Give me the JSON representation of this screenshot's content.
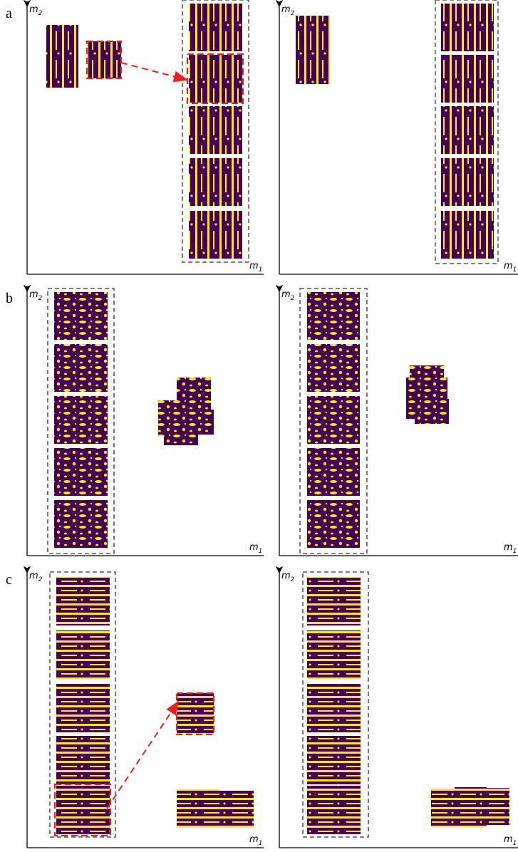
{
  "panel_labels": [
    "a",
    "b",
    "c"
  ],
  "axis_labels": {
    "x": {
      "symbol": "m",
      "subscript": "1"
    },
    "y": {
      "symbol": "m",
      "subscript": "2"
    }
  }
}
